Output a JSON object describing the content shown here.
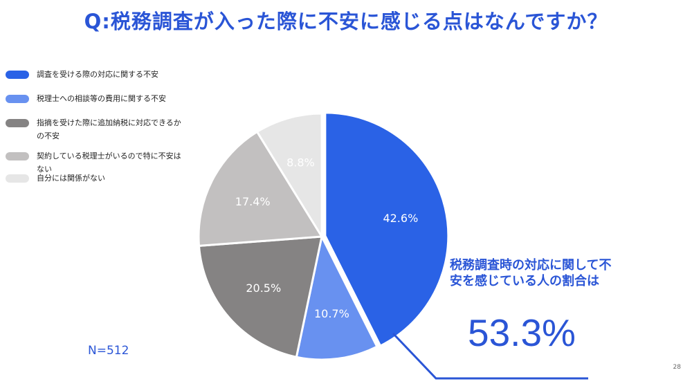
{
  "title": "Q:税務調査が入った際に不安に感じる点はなんですか？",
  "colors": {
    "accent": "#2a55d6",
    "slices": [
      "#2a62e6",
      "#6891f0",
      "#858383",
      "#c2c0c0",
      "#e6e6e6"
    ]
  },
  "chart_data": {
    "type": "pie",
    "start_angle_deg": 0,
    "direction": "clockwise",
    "slices": [
      {
        "label": "調査を受ける際の対応に関する不安",
        "value": 42.6,
        "value_label": "42.6%"
      },
      {
        "label": "税理士への相談等の費用に関する不安",
        "value": 10.7,
        "value_label": "10.7%"
      },
      {
        "label": "指摘を受けた際に追加納税に対応できるかの不安",
        "value": 20.5,
        "value_label": "20.5%"
      },
      {
        "label": "契約している税理士がいるので特に不安はない",
        "value": 17.4,
        "value_label": "17.4%"
      },
      {
        "label": "自分には関係がない",
        "value": 8.8,
        "value_label": "8.8%"
      }
    ],
    "legend": {
      "position": "left",
      "items": [
        "調査を受ける際の対応に関する不安",
        "税理士への相談等の費用に関する不安",
        "指摘を受けた際に追加納税に対応できるか\nの不安",
        "契約している税理士がいるので特に不安は\nない",
        "自分には関係がない"
      ]
    },
    "annotation": {
      "text": "税務調査時の対応に関して不\n安を感じている人の割合は",
      "value": "53.3%"
    },
    "sample_size": "N=512"
  },
  "page_number": "28"
}
